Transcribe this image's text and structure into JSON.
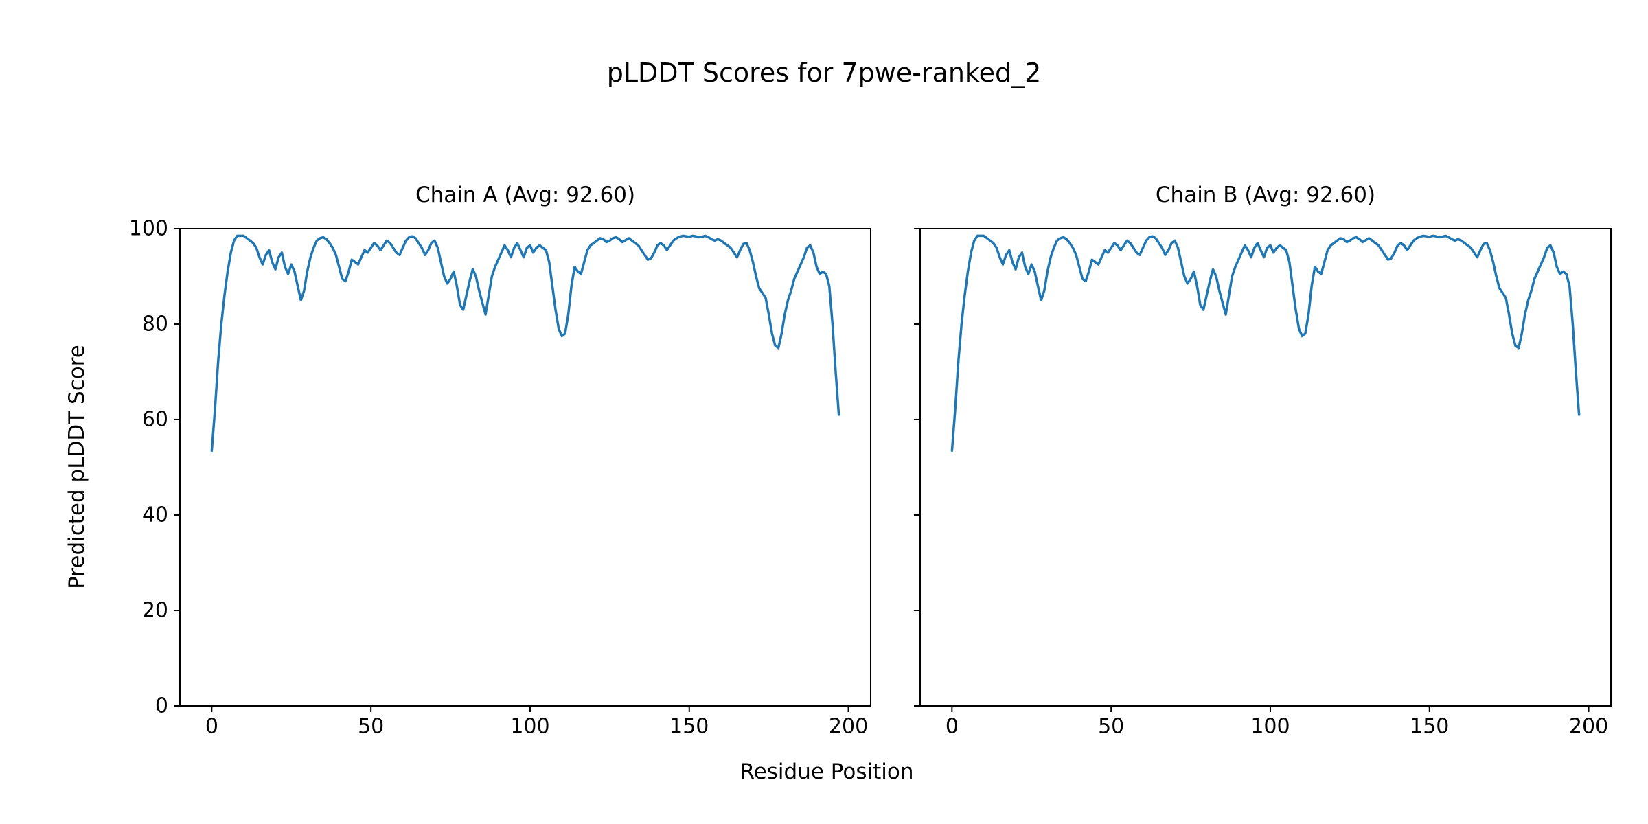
{
  "chart_data": {
    "type": "line",
    "suptitle": "pLDDT Scores for 7pwe-ranked_2",
    "xlabel": "Residue Position",
    "ylabel": "Predicted pLDDT Score",
    "xlim": [
      -10,
      207
    ],
    "ylim": [
      0,
      100
    ],
    "xticks": [
      0,
      50,
      100,
      150,
      200
    ],
    "yticks": [
      0,
      20,
      40,
      60,
      80,
      100
    ],
    "grid": false,
    "legend": null,
    "line_color": "#1f77b4",
    "subplots": [
      {
        "title": "Chain A (Avg: 92.60)",
        "avg": 92.6,
        "series": "plddt",
        "show_yticklabels": true
      },
      {
        "title": "Chain B (Avg: 92.60)",
        "avg": 92.6,
        "series": "plddt",
        "show_yticklabels": false
      }
    ],
    "series": {
      "plddt": {
        "name": "Predicted pLDDT Score",
        "x_start": 0,
        "x_step": 1,
        "values": [
          53.5,
          62,
          72,
          80,
          86,
          91,
          95,
          97.5,
          98.5,
          98.5,
          98.5,
          98,
          97.5,
          97,
          96,
          94,
          92.5,
          94.5,
          95.5,
          93,
          91.5,
          94,
          95,
          92,
          90.5,
          92.5,
          91,
          88,
          85,
          87,
          91,
          94,
          96,
          97.5,
          98,
          98.2,
          97.8,
          97,
          96,
          94.5,
          92,
          89.5,
          89,
          91,
          93.5,
          93,
          92.5,
          94,
          95.5,
          95,
          96,
          97,
          96.5,
          95.5,
          96.5,
          97.5,
          97,
          96,
          95,
          94.5,
          96,
          97.5,
          98.2,
          98.4,
          98,
          97,
          96,
          94.5,
          95.5,
          97,
          97.5,
          96,
          93,
          90,
          88.5,
          89.5,
          91,
          88,
          84,
          83,
          86,
          89,
          91.5,
          90,
          87,
          84.5,
          82,
          86,
          90,
          92,
          93.5,
          95,
          96.5,
          95.5,
          94,
          96,
          97,
          95.5,
          94,
          96,
          96.5,
          95,
          96,
          96.5,
          96,
          95.5,
          93,
          88,
          83,
          79,
          77.5,
          78,
          82,
          88,
          92,
          91,
          90.5,
          93,
          95.5,
          96.5,
          97,
          97.5,
          98,
          97.8,
          97.2,
          97.5,
          98,
          98.2,
          97.8,
          97.2,
          97.6,
          98,
          97.5,
          97,
          96.5,
          95.5,
          94.5,
          93.5,
          93.8,
          95,
          96.5,
          97,
          96.5,
          95.5,
          96.5,
          97.5,
          98,
          98.3,
          98.5,
          98.4,
          98.3,
          98.5,
          98.4,
          98.2,
          98.3,
          98.5,
          98.2,
          97.8,
          97.5,
          97.8,
          97.5,
          97,
          96.5,
          96,
          95,
          94,
          95.5,
          96.8,
          97,
          95.5,
          93,
          90,
          87.5,
          86.5,
          85.5,
          82,
          78,
          75.5,
          75,
          78,
          82,
          85,
          87,
          89.5,
          91,
          92.5,
          94,
          96,
          96.5,
          95,
          92,
          90.5,
          91,
          90.5,
          88,
          80,
          70,
          61
        ]
      }
    }
  }
}
